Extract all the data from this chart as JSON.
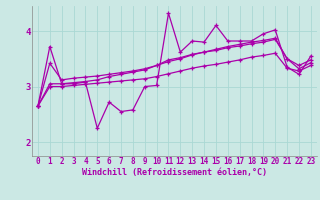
{
  "xlabel": "Windchill (Refroidissement éolien,°C)",
  "background_color": "#cbe8e4",
  "line_color": "#aa00aa",
  "grid_color": "#aad8d4",
  "spine_color": "#888888",
  "xlim": [
    -0.5,
    23.5
  ],
  "ylim": [
    1.75,
    4.45
  ],
  "yticks": [
    2,
    3,
    4
  ],
  "xticks": [
    0,
    1,
    2,
    3,
    4,
    5,
    6,
    7,
    8,
    9,
    10,
    11,
    12,
    13,
    14,
    15,
    16,
    17,
    18,
    19,
    20,
    21,
    22,
    23
  ],
  "series": [
    [
      2.65,
      3.72,
      3.05,
      3.05,
      3.08,
      2.25,
      2.72,
      2.55,
      2.58,
      3.0,
      3.02,
      4.32,
      3.62,
      3.82,
      3.8,
      4.1,
      3.82,
      3.82,
      3.82,
      3.95,
      4.02,
      3.35,
      3.22,
      3.55
    ],
    [
      2.65,
      3.42,
      3.12,
      3.15,
      3.17,
      3.19,
      3.22,
      3.25,
      3.28,
      3.32,
      3.38,
      3.48,
      3.52,
      3.58,
      3.62,
      3.65,
      3.7,
      3.73,
      3.77,
      3.8,
      3.85,
      3.5,
      3.38,
      3.48
    ],
    [
      2.65,
      3.05,
      3.05,
      3.07,
      3.09,
      3.12,
      3.18,
      3.22,
      3.26,
      3.3,
      3.38,
      3.45,
      3.5,
      3.57,
      3.62,
      3.67,
      3.72,
      3.76,
      3.8,
      3.83,
      3.87,
      3.5,
      3.32,
      3.43
    ],
    [
      2.65,
      3.0,
      3.0,
      3.02,
      3.04,
      3.06,
      3.08,
      3.1,
      3.12,
      3.14,
      3.18,
      3.23,
      3.28,
      3.33,
      3.37,
      3.4,
      3.44,
      3.48,
      3.53,
      3.56,
      3.6,
      3.33,
      3.28,
      3.38
    ]
  ],
  "xlabel_fontsize": 6.0,
  "tick_fontsize": 5.5,
  "linewidth": 0.9,
  "markersize": 3.5
}
